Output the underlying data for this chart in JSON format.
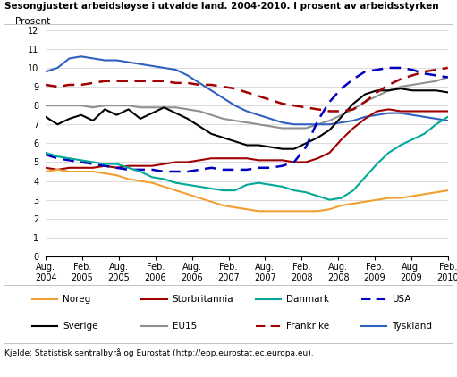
{
  "title": "Sesongjustert arbeidsløyse i utvalde land. 2004-2010. I prosent av arbeidsstyrken",
  "ylabel": "Prosent",
  "source": "Kjelde: Statistisk sentralbyrå og Eurostat (http://epp.eurostat.ec.europa.eu).",
  "ylim": [
    0,
    12
  ],
  "yticks": [
    0,
    1,
    2,
    3,
    4,
    5,
    6,
    7,
    8,
    9,
    10,
    11,
    12
  ],
  "xtick_labels": [
    "Aug.\n2004",
    "Feb.\n2005",
    "Aug.\n2005",
    "Feb.\n2006",
    "Aug.\n2006",
    "Feb.\n2007",
    "Aug.\n2007",
    "Feb.\n2008",
    "Aug.\n2008",
    "Feb.\n2009",
    "Aug.\n2009",
    "Feb.\n2010"
  ],
  "series": {
    "Noreg": {
      "color": "#f0a030",
      "linestyle": "solid",
      "linewidth": 1.5,
      "data": [
        4.5,
        4.6,
        4.5,
        4.5,
        4.5,
        4.4,
        4.3,
        4.1,
        4.0,
        3.9,
        3.7,
        3.5,
        3.3,
        3.1,
        2.9,
        2.7,
        2.6,
        2.5,
        2.4,
        2.4,
        2.4,
        2.4,
        2.4,
        2.4,
        2.5,
        2.7,
        2.8,
        2.9,
        3.0,
        3.1,
        3.1,
        3.2,
        3.3,
        3.4,
        3.5
      ]
    },
    "Sverige": {
      "color": "#000000",
      "linestyle": "solid",
      "linewidth": 1.5,
      "data": [
        7.4,
        7.0,
        7.3,
        7.5,
        7.2,
        7.8,
        7.5,
        7.8,
        7.3,
        7.6,
        7.9,
        7.6,
        7.3,
        6.9,
        6.5,
        6.3,
        6.1,
        5.9,
        5.9,
        5.8,
        5.7,
        5.7,
        6.0,
        6.3,
        6.7,
        7.4,
        8.1,
        8.6,
        8.8,
        8.8,
        8.9,
        8.8,
        8.8,
        8.8,
        8.7
      ]
    },
    "Storbritannia": {
      "color": "#a00000",
      "linestyle": "solid",
      "linewidth": 1.5,
      "data": [
        4.7,
        4.6,
        4.7,
        4.7,
        4.7,
        4.8,
        4.7,
        4.8,
        4.8,
        4.8,
        4.9,
        5.0,
        5.0,
        5.1,
        5.2,
        5.2,
        5.2,
        5.2,
        5.1,
        5.1,
        5.1,
        5.0,
        5.0,
        5.2,
        5.5,
        6.2,
        6.8,
        7.3,
        7.7,
        7.8,
        7.7,
        7.7,
        7.7,
        7.7,
        7.7
      ]
    },
    "EU15": {
      "color": "#909090",
      "linestyle": "solid",
      "linewidth": 1.5,
      "data": [
        8.0,
        8.0,
        8.0,
        8.0,
        7.9,
        8.0,
        8.0,
        8.0,
        7.9,
        7.9,
        7.9,
        7.9,
        7.8,
        7.7,
        7.5,
        7.3,
        7.2,
        7.1,
        7.0,
        6.9,
        6.8,
        6.8,
        6.8,
        7.0,
        7.2,
        7.5,
        7.8,
        8.2,
        8.5,
        8.8,
        9.0,
        9.1,
        9.2,
        9.3,
        9.5
      ]
    },
    "Danmark": {
      "color": "#00a898",
      "linestyle": "solid",
      "linewidth": 1.5,
      "data": [
        5.5,
        5.3,
        5.2,
        5.1,
        5.0,
        4.9,
        4.9,
        4.7,
        4.5,
        4.2,
        4.1,
        3.9,
        3.8,
        3.7,
        3.6,
        3.5,
        3.5,
        3.8,
        3.9,
        3.8,
        3.7,
        3.5,
        3.4,
        3.2,
        3.0,
        3.1,
        3.5,
        4.2,
        4.9,
        5.5,
        5.9,
        6.2,
        6.5,
        7.0,
        7.4
      ]
    },
    "Frankrike": {
      "color": "#a00000",
      "linestyle": "dashed",
      "linewidth": 1.8,
      "data": [
        9.1,
        9.0,
        9.1,
        9.1,
        9.2,
        9.3,
        9.3,
        9.3,
        9.3,
        9.3,
        9.3,
        9.2,
        9.2,
        9.1,
        9.1,
        9.0,
        8.9,
        8.7,
        8.5,
        8.3,
        8.1,
        8.0,
        7.9,
        7.8,
        7.7,
        7.7,
        7.8,
        8.2,
        8.7,
        9.1,
        9.4,
        9.6,
        9.8,
        9.9,
        10.0
      ]
    },
    "USA": {
      "color": "#0000c0",
      "linestyle": "dashed",
      "linewidth": 1.8,
      "data": [
        5.4,
        5.2,
        5.1,
        5.0,
        4.9,
        4.8,
        4.7,
        4.6,
        4.6,
        4.6,
        4.5,
        4.5,
        4.5,
        4.6,
        4.7,
        4.6,
        4.6,
        4.6,
        4.7,
        4.7,
        4.8,
        5.0,
        5.8,
        7.2,
        8.2,
        8.9,
        9.4,
        9.8,
        9.9,
        10.0,
        10.0,
        9.9,
        9.7,
        9.6,
        9.5
      ]
    },
    "Tyskland": {
      "color": "#3060c0",
      "linestyle": "solid",
      "linewidth": 1.5,
      "data": [
        9.8,
        10.0,
        10.5,
        10.6,
        10.5,
        10.4,
        10.4,
        10.3,
        10.2,
        10.1,
        10.0,
        9.9,
        9.6,
        9.2,
        8.8,
        8.4,
        8.0,
        7.7,
        7.5,
        7.3,
        7.1,
        7.0,
        7.0,
        7.0,
        7.0,
        7.1,
        7.2,
        7.4,
        7.5,
        7.6,
        7.6,
        7.5,
        7.4,
        7.3,
        7.2
      ]
    }
  },
  "legend_items": [
    [
      "Noreg",
      "#f0a030",
      "solid"
    ],
    [
      "Storbritannia",
      "#a00000",
      "solid"
    ],
    [
      "Danmark",
      "#00a898",
      "solid"
    ],
    [
      "USA",
      "#0000c0",
      "dashed"
    ],
    [
      "Sverige",
      "#000000",
      "solid"
    ],
    [
      "EU15",
      "#909090",
      "solid"
    ],
    [
      "Frankrike",
      "#a00000",
      "dashed"
    ],
    [
      "Tyskland",
      "#3060c0",
      "solid"
    ]
  ],
  "background_color": "#ffffff",
  "grid_color": "#cccccc"
}
